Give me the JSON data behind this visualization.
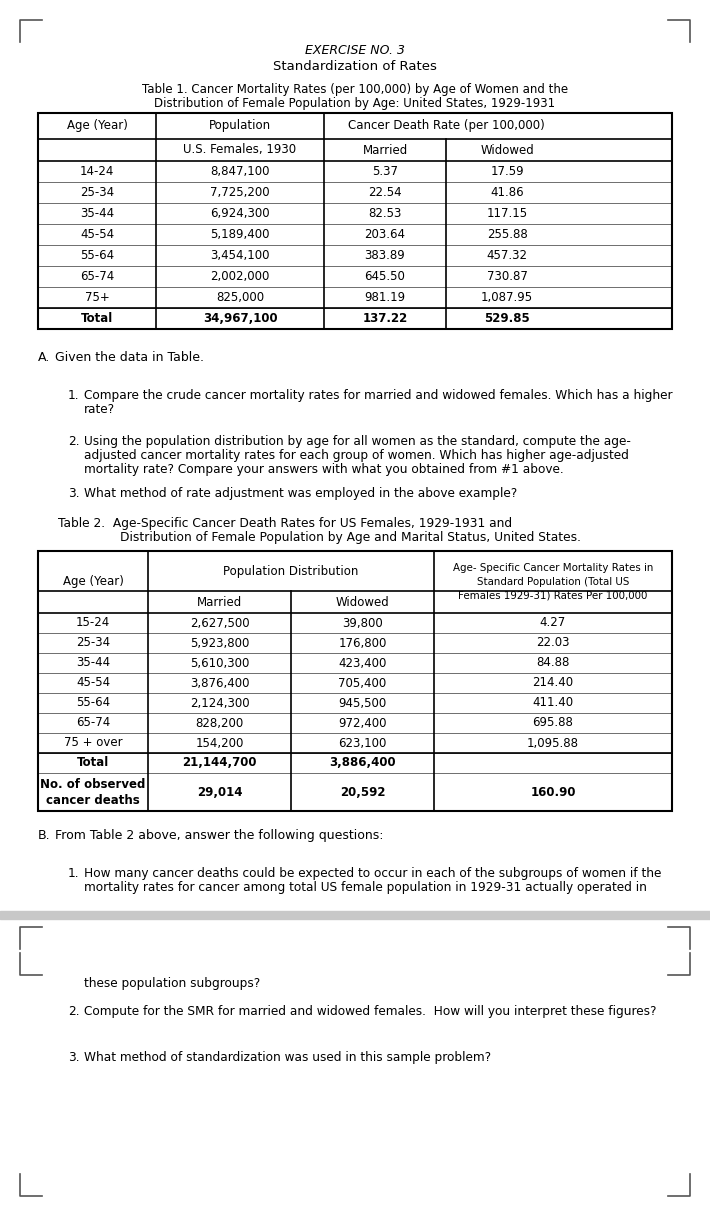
{
  "title_line1": "EXERCISE NO. 3",
  "title_line2": "Standardization of Rates",
  "table1_data": [
    [
      "14-24",
      "8,847,100",
      "5.37",
      "17.59"
    ],
    [
      "25-34",
      "7,725,200",
      "22.54",
      "41.86"
    ],
    [
      "35-44",
      "6,924,300",
      "82.53",
      "117.15"
    ],
    [
      "45-54",
      "5,189,400",
      "203.64",
      "255.88"
    ],
    [
      "55-64",
      "3,454,100",
      "383.89",
      "457.32"
    ],
    [
      "65-74",
      "2,002,000",
      "645.50",
      "730.87"
    ],
    [
      "75+",
      "825,000",
      "981.19",
      "1,087.95"
    ],
    [
      "Total",
      "34,967,100",
      "137.22",
      "529.85"
    ]
  ],
  "table2_data": [
    [
      "15-24",
      "2,627,500",
      "39,800",
      "4.27"
    ],
    [
      "25-34",
      "5,923,800",
      "176,800",
      "22.03"
    ],
    [
      "35-44",
      "5,610,300",
      "423,400",
      "84.88"
    ],
    [
      "45-54",
      "3,876,400",
      "705,400",
      "214.40"
    ],
    [
      "55-64",
      "2,124,300",
      "945,500",
      "411.40"
    ],
    [
      "65-74",
      "828,200",
      "972,400",
      "695.88"
    ],
    [
      "75 + over",
      "154,200",
      "623,100",
      "1,095.88"
    ],
    [
      "Total",
      "21,144,700",
      "3,886,400",
      ""
    ],
    [
      "No. of observed\ncancer deaths",
      "29,014",
      "20,592",
      "160.90"
    ]
  ],
  "bg_color": "#ffffff",
  "text_color": "#000000",
  "page_sep_color": "#c8c8c8",
  "bracket_color": "#555555"
}
